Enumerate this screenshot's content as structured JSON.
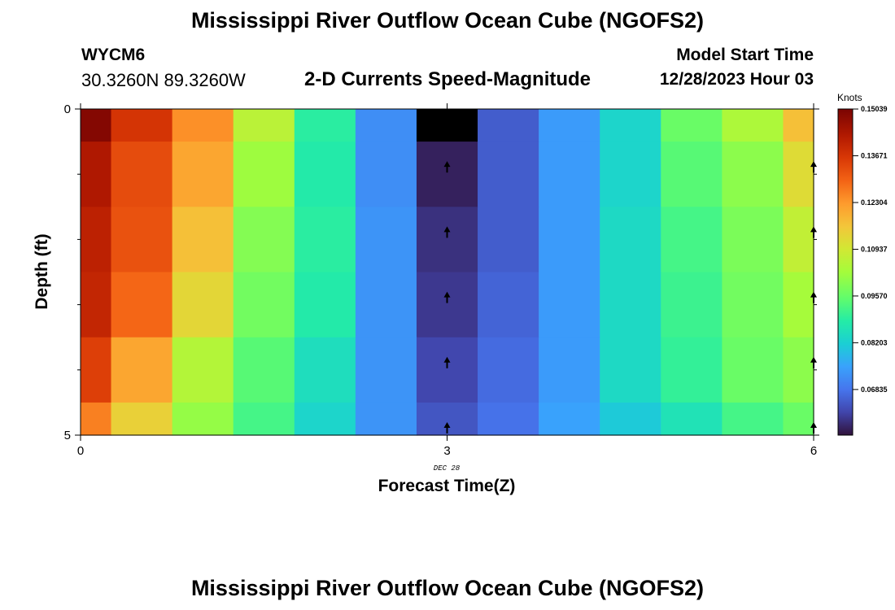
{
  "header": {
    "title": "Mississippi River Outflow Ocean Cube (NGOFS2)",
    "station_id": "WYCM6",
    "station_coords": "30.3260N  89.3260W",
    "variable": "2-D Currents Speed-Magnitude",
    "start_label": "Model Start Time",
    "start_value": "12/28/2023 Hour 03"
  },
  "footer": {
    "title": "Mississippi River Outflow Ocean Cube (NGOFS2)"
  },
  "chart_data": {
    "type": "heatmap",
    "title": "2-D Currents Speed-Magnitude",
    "xlabel": "Forecast Time(Z)",
    "ylabel": "Depth (ft)",
    "x_ticks": [
      0,
      3,
      6
    ],
    "x_tick_labels": [
      "0",
      "3",
      "6"
    ],
    "x_sublabel": "DEC 28",
    "y_ticks": [
      0,
      5
    ],
    "y_tick_labels": [
      "0",
      "5"
    ],
    "xlim": [
      0,
      6
    ],
    "ylim": [
      0,
      5
    ],
    "x_edges": [
      0,
      0.25,
      0.75,
      1.25,
      1.75,
      2.25,
      2.75,
      3.25,
      3.75,
      4.25,
      4.75,
      5.25,
      5.75,
      6
    ],
    "depth_edges": [
      0,
      0.5,
      1.5,
      2.5,
      3.5,
      4.5,
      5
    ],
    "colorbar": {
      "unit": "Knots",
      "min": 0.055,
      "max": 0.1504,
      "tick_values": [
        0.15039,
        0.13671,
        0.12304,
        0.10937,
        0.0957,
        0.08203,
        0.06835
      ],
      "tick_labels": [
        "0.15039",
        "0.13671",
        "0.12304",
        "0.10937",
        "0.09570",
        "0.08203",
        "0.06835"
      ]
    },
    "values": [
      [
        0.149,
        0.137,
        0.124,
        0.106,
        0.089,
        0.072,
        0.04,
        0.065,
        0.074,
        0.083,
        0.096,
        0.104,
        0.117
      ],
      [
        0.143,
        0.133,
        0.121,
        0.102,
        0.088,
        0.072,
        0.057,
        0.065,
        0.074,
        0.083,
        0.094,
        0.1,
        0.112
      ],
      [
        0.141,
        0.132,
        0.117,
        0.099,
        0.089,
        0.073,
        0.059,
        0.065,
        0.074,
        0.084,
        0.092,
        0.098,
        0.107
      ],
      [
        0.14,
        0.129,
        0.113,
        0.097,
        0.088,
        0.073,
        0.06,
        0.066,
        0.074,
        0.084,
        0.091,
        0.097,
        0.103
      ],
      [
        0.135,
        0.121,
        0.105,
        0.094,
        0.085,
        0.073,
        0.062,
        0.067,
        0.074,
        0.084,
        0.09,
        0.096,
        0.1
      ],
      [
        0.126,
        0.114,
        0.101,
        0.092,
        0.083,
        0.073,
        0.064,
        0.068,
        0.075,
        0.081,
        0.086,
        0.092,
        0.096
      ]
    ],
    "arrows": [
      {
        "x": 3,
        "depth": 0.9
      },
      {
        "x": 3,
        "depth": 1.9
      },
      {
        "x": 3,
        "depth": 2.9
      },
      {
        "x": 3,
        "depth": 3.9
      },
      {
        "x": 3,
        "depth": 4.9
      },
      {
        "x": 6,
        "depth": 0.9
      },
      {
        "x": 6,
        "depth": 1.9
      },
      {
        "x": 6,
        "depth": 2.9
      },
      {
        "x": 6,
        "depth": 3.9
      },
      {
        "x": 6,
        "depth": 4.9
      }
    ]
  }
}
